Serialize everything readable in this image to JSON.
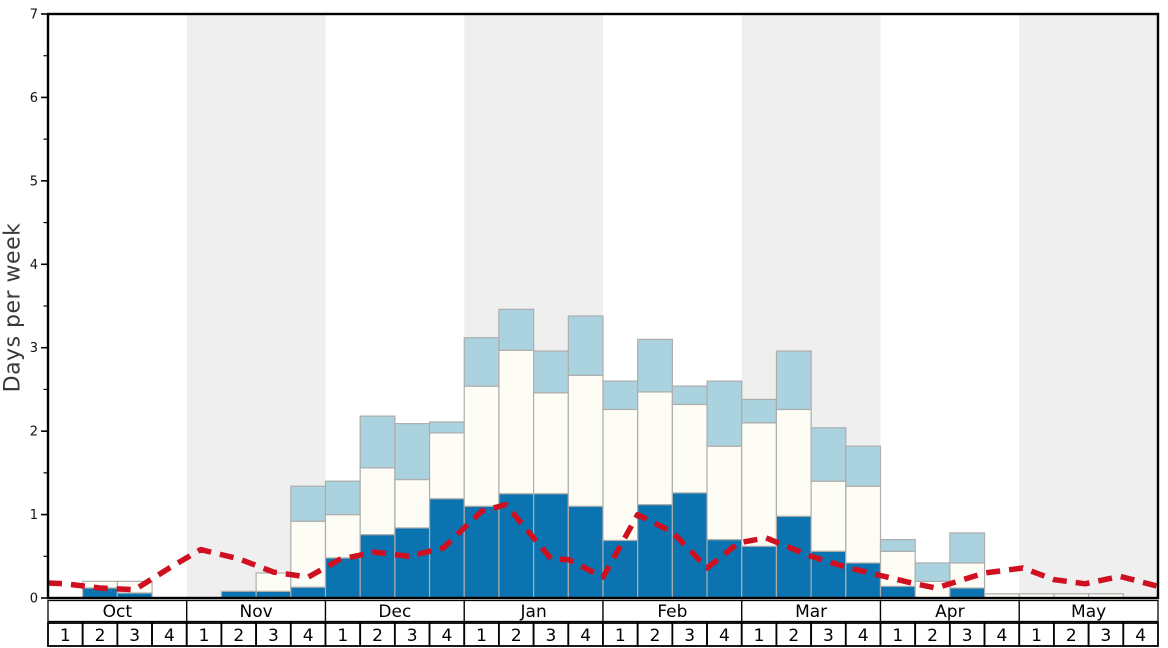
{
  "chart_data": {
    "type": "bar",
    "stacked": true,
    "title": "",
    "ylabel": "Days per week",
    "ylim": [
      0,
      7
    ],
    "y_major_ticks": [
      0,
      1,
      2,
      3,
      4,
      5,
      6,
      7
    ],
    "y_minor_step": 0.5,
    "months": [
      "Oct",
      "Nov",
      "Dec",
      "Jan",
      "Feb",
      "Mar",
      "Apr",
      "May"
    ],
    "week_labels": [
      "1",
      "2",
      "3",
      "4"
    ],
    "shaded_month_indexes": [
      1,
      3,
      5,
      7
    ],
    "series": [
      {
        "name": "dark-blue-days",
        "color": "#0b73b0",
        "values": [
          0,
          0.12,
          0.06,
          0,
          0,
          0.08,
          0.08,
          0.13,
          0.48,
          0.76,
          0.84,
          1.19,
          1.1,
          1.25,
          1.25,
          1.1,
          0.69,
          1.12,
          1.26,
          0.7,
          0.62,
          0.98,
          0.56,
          0.42,
          0.14,
          0,
          0.12,
          0,
          0,
          0,
          0,
          0
        ]
      },
      {
        "name": "white-days",
        "color": "#fefdf5",
        "values": [
          0,
          0.08,
          0.14,
          0,
          0,
          0,
          0.22,
          0.79,
          0.52,
          0.8,
          0.58,
          0.79,
          1.44,
          1.72,
          1.21,
          1.57,
          1.57,
          1.35,
          1.06,
          1.12,
          1.48,
          1.28,
          0.84,
          0.92,
          0.42,
          0.2,
          0.3,
          0.05,
          0.05,
          0.05,
          0.05,
          0
        ]
      },
      {
        "name": "light-blue-days",
        "color": "#aad3df",
        "values": [
          0,
          0,
          0,
          0,
          0,
          0,
          0,
          0.42,
          0.4,
          0.62,
          0.67,
          0.13,
          0.58,
          0.49,
          0.5,
          0.71,
          0.34,
          0.63,
          0.22,
          0.78,
          0.28,
          0.7,
          0.64,
          0.48,
          0.14,
          0.22,
          0.36,
          0,
          0,
          0,
          0,
          0
        ]
      }
    ],
    "line": {
      "name": "red-dashed-line",
      "color": "#cf1021",
      "points_week_value": [
        [
          0,
          0.18
        ],
        [
          0.5,
          0.17
        ],
        [
          1.5,
          0.12
        ],
        [
          2.5,
          0.1
        ],
        [
          3.5,
          0.36
        ],
        [
          4.4,
          0.58
        ],
        [
          5.5,
          0.47
        ],
        [
          6.5,
          0.31
        ],
        [
          7.5,
          0.25
        ],
        [
          8.4,
          0.46
        ],
        [
          9.4,
          0.55
        ],
        [
          10.4,
          0.5
        ],
        [
          11.4,
          0.6
        ],
        [
          12.5,
          1.04
        ],
        [
          13.2,
          1.12
        ],
        [
          14.5,
          0.47
        ],
        [
          15.0,
          0.46
        ],
        [
          16.0,
          0.25
        ],
        [
          17.0,
          1.0
        ],
        [
          18.0,
          0.79
        ],
        [
          19.0,
          0.36
        ],
        [
          19.9,
          0.66
        ],
        [
          20.7,
          0.72
        ],
        [
          22.0,
          0.5
        ],
        [
          23.0,
          0.37
        ],
        [
          24.0,
          0.27
        ],
        [
          25.0,
          0.17
        ],
        [
          25.6,
          0.12
        ],
        [
          27.0,
          0.3
        ],
        [
          28.1,
          0.36
        ],
        [
          29.0,
          0.22
        ],
        [
          29.9,
          0.17
        ],
        [
          30.9,
          0.26
        ],
        [
          32.0,
          0.14
        ]
      ]
    },
    "layout": {
      "band_color": "#efefef",
      "bar_border_color": "#adadad",
      "axis_color": "#000000",
      "tick_label_color": "#111111",
      "grid": false,
      "legend": "none"
    }
  }
}
